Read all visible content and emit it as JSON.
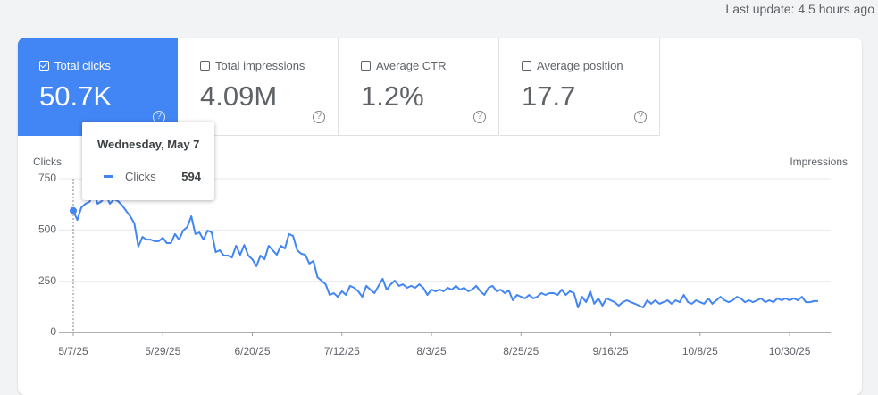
{
  "last_update": "Last update: 4.5 hours ago",
  "metrics": [
    {
      "label": "Total clicks",
      "value": "50.7K",
      "checked": true
    },
    {
      "label": "Total impressions",
      "value": "4.09M",
      "checked": false
    },
    {
      "label": "Average CTR",
      "value": "1.2%",
      "checked": false
    },
    {
      "label": "Average position",
      "value": "17.7",
      "checked": false
    }
  ],
  "tooltip": {
    "date": "Wednesday, May 7"
  },
  "chart_data": {
    "type": "line",
    "y_label": "Clicks",
    "y2_label": "Impressions",
    "x": [
      "5/7/25",
      "5/8/25",
      "5/9/25",
      "5/10/25",
      "5/11/25",
      "5/12/25",
      "5/13/25",
      "5/14/25",
      "5/15/25",
      "5/16/25",
      "5/17/25",
      "5/18/25",
      "5/19/25",
      "5/20/25",
      "5/21/25",
      "5/22/25",
      "5/23/25",
      "5/24/25",
      "5/25/25",
      "5/26/25",
      "5/27/25",
      "5/28/25",
      "5/29/25",
      "5/30/25",
      "5/31/25",
      "6/1/25",
      "6/2/25",
      "6/3/25",
      "6/4/25",
      "6/5/25",
      "6/6/25",
      "6/7/25",
      "6/8/25",
      "6/9/25",
      "6/10/25",
      "6/11/25",
      "6/12/25",
      "6/13/25",
      "6/14/25",
      "6/15/25",
      "6/16/25",
      "6/17/25",
      "6/18/25",
      "6/19/25",
      "6/20/25",
      "6/21/25",
      "6/22/25",
      "6/23/25",
      "6/24/25",
      "6/25/25",
      "6/26/25",
      "6/27/25",
      "6/28/25",
      "6/29/25",
      "6/30/25",
      "7/1/25",
      "7/2/25",
      "7/3/25",
      "7/4/25",
      "7/5/25",
      "7/6/25",
      "7/7/25",
      "7/8/25",
      "7/9/25",
      "7/10/25",
      "7/11/25",
      "7/12/25",
      "7/13/25",
      "7/14/25",
      "7/15/25",
      "7/16/25",
      "7/17/25",
      "7/18/25",
      "7/19/25",
      "7/20/25",
      "7/21/25",
      "7/22/25",
      "7/23/25",
      "7/24/25",
      "7/25/25",
      "7/26/25",
      "7/27/25",
      "7/28/25",
      "7/29/25",
      "7/30/25",
      "7/31/25",
      "8/1/25",
      "8/2/25",
      "8/3/25",
      "8/4/25",
      "8/5/25",
      "8/6/25",
      "8/7/25",
      "8/8/25",
      "8/9/25",
      "8/10/25",
      "8/11/25",
      "8/12/25",
      "8/13/25",
      "8/14/25",
      "8/15/25",
      "8/16/25",
      "8/17/25",
      "8/18/25",
      "8/19/25",
      "8/20/25",
      "8/21/25",
      "8/22/25",
      "8/23/25",
      "8/24/25",
      "8/25/25",
      "8/26/25",
      "8/27/25",
      "8/28/25",
      "8/29/25",
      "8/30/25",
      "8/31/25",
      "9/1/25",
      "9/2/25",
      "9/3/25",
      "9/4/25",
      "9/5/25",
      "9/6/25",
      "9/7/25",
      "9/8/25",
      "9/9/25",
      "9/10/25",
      "9/11/25",
      "9/12/25",
      "9/13/25",
      "9/14/25",
      "9/15/25",
      "9/16/25",
      "9/17/25",
      "9/18/25",
      "9/19/25",
      "9/20/25",
      "9/21/25",
      "9/22/25",
      "9/23/25",
      "9/24/25",
      "9/25/25",
      "9/26/25",
      "9/27/25",
      "9/28/25",
      "9/29/25",
      "9/30/25",
      "10/1/25",
      "10/2/25",
      "10/3/25",
      "10/4/25",
      "10/5/25",
      "10/6/25",
      "10/7/25",
      "10/8/25",
      "10/9/25",
      "10/10/25",
      "10/11/25",
      "10/12/25",
      "10/13/25",
      "10/14/25",
      "10/15/25",
      "10/16/25",
      "10/17/25",
      "10/18/25",
      "10/19/25",
      "10/20/25",
      "10/21/25",
      "10/22/25",
      "10/23/25",
      "10/24/25",
      "10/25/25",
      "10/26/25",
      "10/27/25",
      "10/28/25",
      "10/29/25",
      "10/30/25",
      "10/31/25",
      "11/1/25",
      "11/2/25",
      "11/3/25",
      "11/4/25",
      "11/5/25",
      "11/6/25"
    ],
    "series": [
      {
        "name": "Clicks",
        "color": "#4285f4",
        "values": [
          594,
          549,
          610,
          628,
          637,
          684,
          628,
          641,
          671,
          628,
          650,
          641,
          620,
          593,
          567,
          532,
          419,
          466,
          453,
          453,
          445,
          445,
          462,
          436,
          436,
          480,
          453,
          497,
          514,
          567,
          480,
          488,
          453,
          497,
          488,
          392,
          401,
          375,
          375,
          366,
          423,
          379,
          427,
          375,
          357,
          323,
          375,
          357,
          423,
          401,
          379,
          423,
          410,
          480,
          471,
          401,
          384,
          379,
          336,
          349,
          270,
          253,
          235,
          183,
          192,
          174,
          201,
          183,
          227,
          218,
          201,
          174,
          227,
          209,
          192,
          227,
          262,
          209,
          235,
          253,
          227,
          235,
          218,
          227,
          218,
          235,
          218,
          183,
          209,
          201,
          209,
          201,
          218,
          209,
          227,
          209,
          218,
          201,
          209,
          227,
          201,
          183,
          218,
          227,
          201,
          209,
          192,
          205,
          157,
          183,
          174,
          166,
          183,
          166,
          174,
          192,
          183,
          192,
          192,
          183,
          209,
          183,
          201,
          192,
          122,
          174,
          148,
          201,
          140,
          166,
          131,
          166,
          157,
          148,
          131,
          148,
          157,
          148,
          140,
          131,
          122,
          157,
          140,
          157,
          140,
          148,
          157,
          140,
          157,
          148,
          183,
          148,
          140,
          157,
          148,
          140,
          166,
          140,
          157,
          174,
          157,
          148,
          157,
          174,
          166,
          148,
          157,
          148,
          157,
          166,
          148,
          157,
          148,
          166,
          157,
          166,
          157,
          166,
          157,
          174,
          148,
          148,
          153,
          153
        ]
      }
    ],
    "ylim": [
      0,
      750
    ],
    "yticks": [
      0,
      250,
      500,
      750
    ],
    "xticks": [
      "5/7/25",
      "5/29/25",
      "6/20/25",
      "7/12/25",
      "8/3/25",
      "8/25/25",
      "9/16/25",
      "10/8/25",
      "10/30/25"
    ],
    "grid": true
  }
}
